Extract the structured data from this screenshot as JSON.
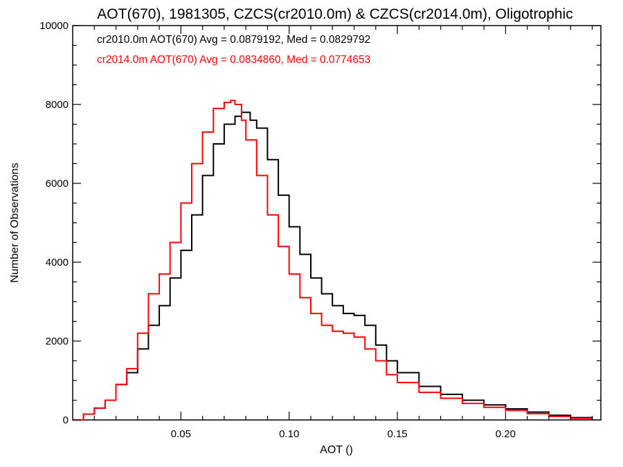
{
  "chart_data": {
    "type": "line",
    "title": "AOT(670), 1981305, CZCS(cr2010.0m) & CZCS(cr2014.0m), Oligotrophic",
    "xlabel": "AOT ()",
    "ylabel": "Number of Observations",
    "xlim": [
      0.0,
      0.244
    ],
    "ylim": [
      0,
      10000
    ],
    "x_ticks": [
      "0.05",
      "0.10",
      "0.15",
      "0.20"
    ],
    "x_tick_values": [
      0.05,
      0.1,
      0.15,
      0.2
    ],
    "y_ticks": [
      "0",
      "2000",
      "4000",
      "6000",
      "8000",
      "10000"
    ],
    "y_tick_values": [
      0,
      2000,
      4000,
      6000,
      8000,
      10000
    ],
    "grid": false,
    "annotations": [
      {
        "text": "cr2010.0m AOT(670) Avg = 0.0879192, Med = 0.0829792",
        "color": "#000000"
      },
      {
        "text": "cr2014.0m AOT(670) Avg = 0.0834860, Med = 0.0774653",
        "color": "#ff0000"
      }
    ],
    "series": [
      {
        "color": "#000000",
        "style": "step",
        "x": [
          0.0,
          0.005,
          0.01,
          0.015,
          0.02,
          0.025,
          0.03,
          0.035,
          0.04,
          0.045,
          0.05,
          0.055,
          0.06,
          0.065,
          0.07,
          0.075,
          0.078,
          0.082,
          0.085,
          0.09,
          0.095,
          0.1,
          0.105,
          0.11,
          0.115,
          0.12,
          0.125,
          0.13,
          0.135,
          0.14,
          0.145,
          0.15,
          0.16,
          0.17,
          0.18,
          0.19,
          0.2,
          0.21,
          0.22,
          0.23,
          0.24
        ],
        "y": [
          0,
          150,
          300,
          500,
          900,
          1200,
          1800,
          2400,
          2900,
          3600,
          4300,
          5200,
          6200,
          7000,
          7500,
          7700,
          7800,
          7600,
          7400,
          6600,
          5700,
          4900,
          4200,
          3600,
          3200,
          2900,
          2700,
          2650,
          2400,
          1900,
          1500,
          1200,
          850,
          650,
          500,
          380,
          280,
          200,
          120,
          60,
          20
        ]
      },
      {
        "color": "#ff0000",
        "style": "step",
        "x": [
          0.0,
          0.005,
          0.01,
          0.015,
          0.02,
          0.025,
          0.03,
          0.035,
          0.04,
          0.045,
          0.05,
          0.055,
          0.06,
          0.065,
          0.07,
          0.073,
          0.075,
          0.078,
          0.08,
          0.085,
          0.09,
          0.095,
          0.1,
          0.105,
          0.11,
          0.115,
          0.12,
          0.125,
          0.13,
          0.135,
          0.14,
          0.145,
          0.15,
          0.16,
          0.17,
          0.18,
          0.19,
          0.2,
          0.21,
          0.22,
          0.23,
          0.24
        ],
        "y": [
          0,
          150,
          300,
          500,
          900,
          1300,
          2200,
          3200,
          3700,
          4500,
          5500,
          6500,
          7300,
          7900,
          8050,
          8100,
          8000,
          7600,
          7100,
          6200,
          5200,
          4400,
          3700,
          3100,
          2700,
          2400,
          2250,
          2200,
          2100,
          1800,
          1500,
          1150,
          950,
          700,
          550,
          420,
          320,
          240,
          160,
          90,
          40,
          10
        ]
      }
    ]
  }
}
